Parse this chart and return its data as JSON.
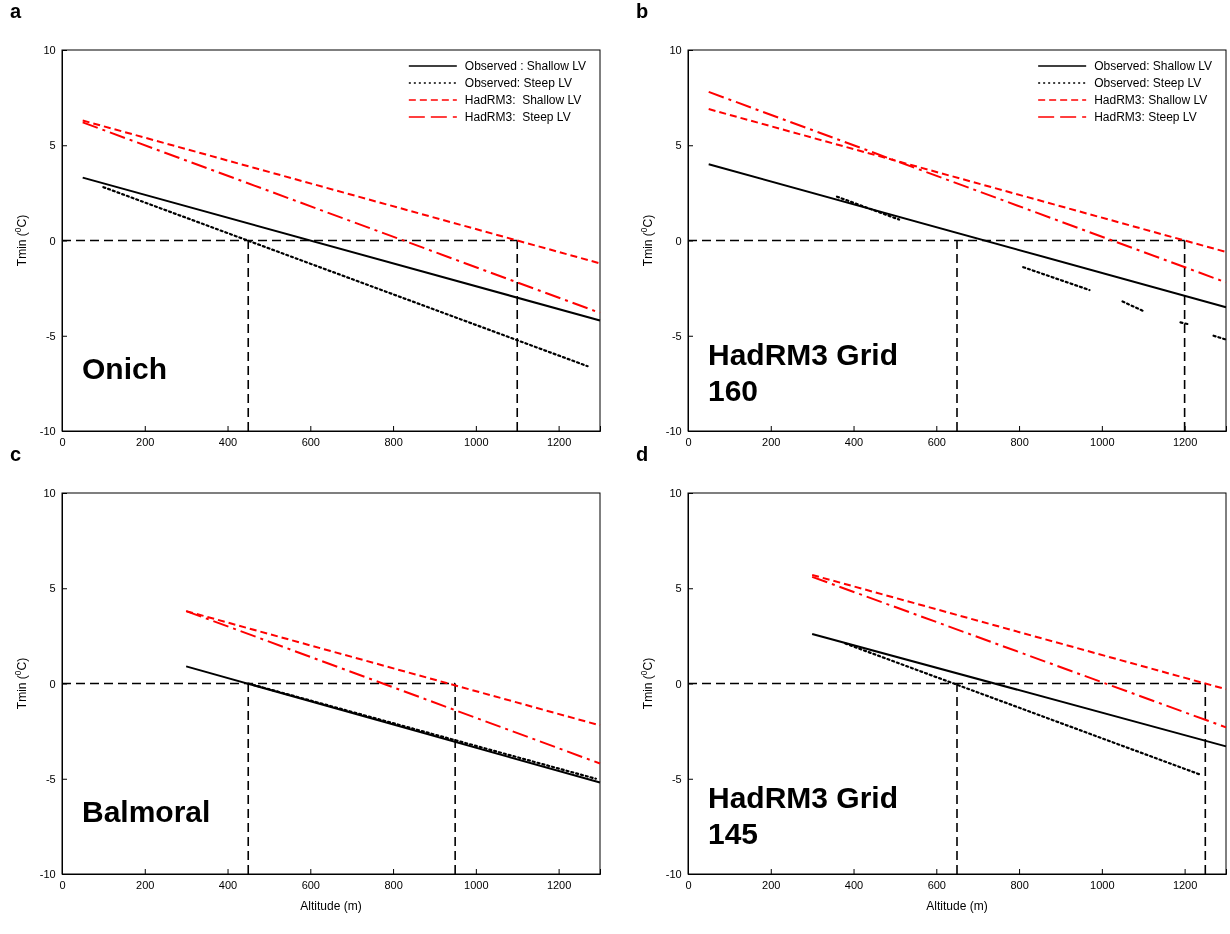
{
  "chart_data": [
    {
      "type": "line",
      "title": "a",
      "ylabel": "Tmin ($^{0}$C)",
      "annotations": [
        "Onich"
      ],
      "xlim": [
        0,
        1300
      ],
      "xticks": [
        0,
        200,
        400,
        600,
        800,
        1000,
        1200
      ],
      "ylim": [
        -10,
        10
      ],
      "yticks": [
        -10,
        -5,
        0,
        5,
        10
      ],
      "legend": "top right",
      "series": [
        {
          "name": "Observed : Shallow LV",
          "color": "#000000",
          "line_style": "solid",
          "x": [
            50,
            1300
          ],
          "values": [
            3.3,
            -4.2
          ]
        },
        {
          "name": "Observed: Steep LV",
          "color": "#000000",
          "line_style": "dotted",
          "x": [
            100,
            1270
          ],
          "values": [
            2.8,
            -6.6
          ]
        },
        {
          "name": "HadRM3:  Shallow LV",
          "color": "#ff0000",
          "line_style": "dashed",
          "x": [
            50,
            1300
          ],
          "values": [
            6.3,
            -1.2
          ]
        },
        {
          "name": "HadRM3:  Steep LV",
          "color": "#ff0000",
          "line_style": "dashed",
          "x": [
            50,
            1300
          ],
          "values": [
            6.2,
            -3.8
          ]
        }
      ],
      "ref_lines": [
        {
          "axis": "y",
          "value": 0,
          "color": "#000000",
          "line_style": "dashed"
        },
        {
          "axis": "x",
          "value": 450,
          "color": "#000000",
          "line_style": "dashed"
        },
        {
          "axis": "x",
          "value": 1100,
          "color": "#000000",
          "line_style": "dashed"
        }
      ]
    },
    {
      "type": "line",
      "title": "b",
      "ylabel": "Tmin ($^{0}$C)",
      "annotations": [
        "HadRM3 Grid 160"
      ],
      "xlim": [
        0,
        1300
      ],
      "xticks": [
        0,
        200,
        400,
        600,
        800,
        1000,
        1200
      ],
      "ylim": [
        -10,
        10
      ],
      "yticks": [
        -10,
        -5,
        0,
        5,
        10
      ],
      "legend": "top right",
      "series": [
        {
          "name": "Observed: Shallow LV",
          "color": "#000000",
          "line_style": "solid",
          "x": [
            50,
            1300
          ],
          "values": [
            4.0,
            -3.5
          ]
        },
        {
          "name": "Observed: Steep LV",
          "color": "#000000",
          "line_style": "dotted",
          "x": [
            360,
            510,
            660,
            810,
            970,
            1010,
            1050,
            1100,
            1145,
            1190,
            1210,
            1240,
            1270,
            1300
          ],
          "values": [
            2.3,
            1.1,
            null,
            -1.4,
            -2.6,
            null,
            -3.2,
            -3.7,
            null,
            -4.3,
            -4.4,
            null,
            -5.0,
            -5.2
          ]
        },
        {
          "name": "HadRM3: Shallow LV",
          "color": "#ff0000",
          "line_style": "dashed",
          "x": [
            50,
            1300
          ],
          "values": [
            6.9,
            -0.6
          ]
        },
        {
          "name": "HadRM3: Steep LV",
          "color": "#ff0000",
          "line_style": "dashed",
          "x": [
            50,
            1300
          ],
          "values": [
            7.8,
            -2.2
          ]
        }
      ],
      "ref_lines": [
        {
          "axis": "y",
          "value": 0,
          "color": "#000000",
          "line_style": "dashed"
        },
        {
          "axis": "x",
          "value": 650,
          "color": "#000000",
          "line_style": "dashed"
        },
        {
          "axis": "x",
          "value": 1200,
          "color": "#000000",
          "line_style": "dashed"
        }
      ]
    },
    {
      "type": "line",
      "title": "c",
      "xlabel": "Altitude (m)",
      "ylabel": "Tmin ($^{0}$C)",
      "annotations": [
        "Balmoral"
      ],
      "xlim": [
        0,
        1300
      ],
      "xticks": [
        0,
        200,
        400,
        600,
        800,
        1000,
        1200
      ],
      "ylim": [
        -10,
        10
      ],
      "yticks": [
        -10,
        -5,
        0,
        5,
        10
      ],
      "series": [
        {
          "color": "#000000",
          "line_style": "solid",
          "x": [
            300,
            1300
          ],
          "values": [
            0.9,
            -5.2
          ]
        },
        {
          "color": "#000000",
          "line_style": "dotted",
          "x": [
            450,
            1290
          ],
          "values": [
            0.0,
            -5.0
          ]
        },
        {
          "color": "#ff0000",
          "line_style": "dashed",
          "x": [
            300,
            1300
          ],
          "values": [
            3.8,
            -2.2
          ]
        },
        {
          "color": "#ff0000",
          "line_style": "dashed",
          "x": [
            300,
            1300
          ],
          "values": [
            3.8,
            -4.2
          ]
        }
      ],
      "ref_lines": [
        {
          "axis": "y",
          "value": 0,
          "color": "#000000",
          "line_style": "dashed"
        },
        {
          "axis": "x",
          "value": 450,
          "color": "#000000",
          "line_style": "dashed"
        },
        {
          "axis": "x",
          "value": 950,
          "color": "#000000",
          "line_style": "dashed"
        }
      ]
    },
    {
      "type": "line",
      "title": "d",
      "xlabel": "Altitude (m)",
      "ylabel": "Tmin ($^{0}$C)",
      "annotations": [
        "HadRM3 Grid 145"
      ],
      "xlim": [
        0,
        1300
      ],
      "xticks": [
        0,
        200,
        400,
        600,
        800,
        1000,
        1200
      ],
      "ylim": [
        -10,
        10
      ],
      "yticks": [
        -10,
        -5,
        0,
        5,
        10
      ],
      "series": [
        {
          "color": "#000000",
          "line_style": "solid",
          "x": [
            300,
            1300
          ],
          "values": [
            2.6,
            -3.3
          ]
        },
        {
          "color": "#000000",
          "line_style": "dotted",
          "x": [
            380,
            1240
          ],
          "values": [
            2.1,
            -4.8
          ]
        },
        {
          "color": "#ff0000",
          "line_style": "dashed",
          "x": [
            300,
            1300
          ],
          "values": [
            5.7,
            -0.3
          ]
        },
        {
          "color": "#ff0000",
          "line_style": "dashed",
          "x": [
            300,
            1300
          ],
          "values": [
            5.6,
            -2.3
          ]
        }
      ],
      "ref_lines": [
        {
          "axis": "y",
          "value": 0,
          "color": "#000000",
          "line_style": "dashed"
        },
        {
          "axis": "x",
          "value": 650,
          "color": "#000000",
          "line_style": "dashed"
        },
        {
          "axis": "x",
          "value": 1250,
          "color": "#000000",
          "line_style": "dashed"
        }
      ]
    }
  ]
}
